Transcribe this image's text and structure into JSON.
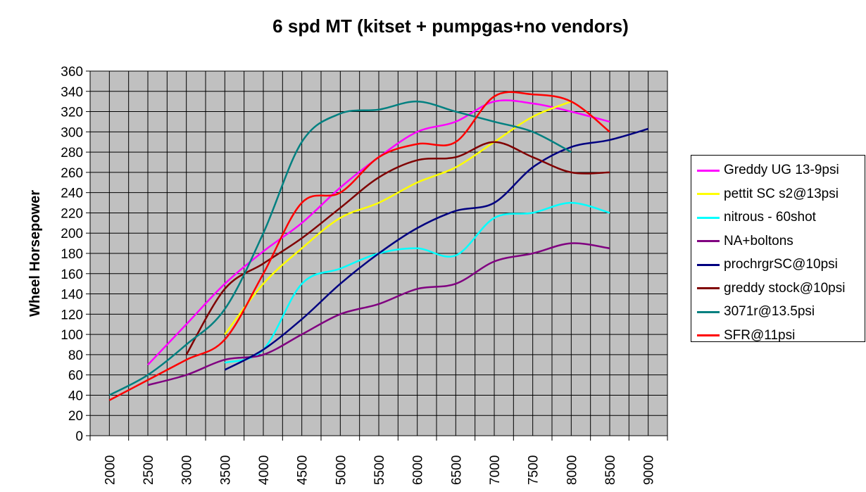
{
  "chart_data": {
    "type": "line",
    "title": "6 spd MT (kitset + pumpgas+no vendors)",
    "ylabel": "Wheel Horsepower",
    "xlabel": "",
    "ylim": [
      0,
      360
    ],
    "ytick_step": 20,
    "xticks": [
      2000,
      2500,
      3000,
      3500,
      4000,
      4500,
      5000,
      5500,
      6000,
      6500,
      7000,
      7500,
      8000,
      8500,
      9000
    ],
    "grid": true,
    "legend_position": "right",
    "background_color": "#c0c0c0",
    "series": [
      {
        "name": "Greddy UG 13-9psi",
        "color": "#ff00ff",
        "x": [
          2500,
          3000,
          3500,
          4000,
          4500,
          5000,
          5500,
          6000,
          6500,
          7000,
          7500,
          8000,
          8500
        ],
        "y": [
          70,
          110,
          150,
          182,
          210,
          245,
          275,
          300,
          310,
          330,
          328,
          320,
          310
        ]
      },
      {
        "name": "pettit SC s2@13psi",
        "color": "#ffff00",
        "x": [
          3500,
          4000,
          4500,
          5000,
          5500,
          6000,
          6500,
          7000,
          7500,
          8000
        ],
        "y": [
          100,
          150,
          185,
          215,
          230,
          250,
          265,
          290,
          315,
          330
        ]
      },
      {
        "name": "nitrous - 60shot",
        "color": "#00ffff",
        "x": [
          3500,
          4000,
          4500,
          5000,
          5500,
          6000,
          6500,
          7000,
          7500,
          8000,
          8500
        ],
        "y": [
          72,
          85,
          150,
          165,
          180,
          185,
          178,
          215,
          220,
          230,
          220
        ]
      },
      {
        "name": "NA+boltons",
        "color": "#800080",
        "x": [
          2500,
          3000,
          3500,
          4000,
          4500,
          5000,
          5500,
          6000,
          6500,
          7000,
          7500,
          8000,
          8500
        ],
        "y": [
          50,
          60,
          75,
          80,
          100,
          120,
          130,
          145,
          150,
          172,
          180,
          190,
          185
        ]
      },
      {
        "name": "prochrgrSC@10psi",
        "color": "#000080",
        "x": [
          3500,
          4000,
          4500,
          5000,
          5500,
          6000,
          6500,
          7000,
          7500,
          8000,
          8500,
          9000
        ],
        "y": [
          65,
          85,
          115,
          150,
          180,
          205,
          222,
          230,
          265,
          285,
          292,
          303
        ]
      },
      {
        "name": "greddy stock@10psi",
        "color": "#800000",
        "x": [
          3000,
          3500,
          4000,
          4500,
          5000,
          5500,
          6000,
          6500,
          7000,
          7500,
          8000,
          8500
        ],
        "y": [
          80,
          145,
          170,
          195,
          225,
          255,
          272,
          275,
          290,
          275,
          260,
          260
        ]
      },
      {
        "name": "3071r@13.5psi",
        "color": "#008080",
        "x": [
          2000,
          2500,
          3000,
          3500,
          4000,
          4500,
          5000,
          5500,
          6000,
          6500,
          7000,
          7500,
          8000
        ],
        "y": [
          40,
          60,
          90,
          125,
          200,
          290,
          318,
          322,
          330,
          320,
          310,
          300,
          280
        ]
      },
      {
        "name": "SFR@11psi",
        "color": "#ff0000",
        "x": [
          2000,
          2500,
          3000,
          3500,
          4000,
          4500,
          5000,
          5500,
          6000,
          6500,
          7000,
          7500,
          8000,
          8500
        ],
        "y": [
          35,
          55,
          75,
          95,
          160,
          230,
          240,
          275,
          288,
          290,
          335,
          337,
          330,
          300
        ]
      }
    ]
  }
}
